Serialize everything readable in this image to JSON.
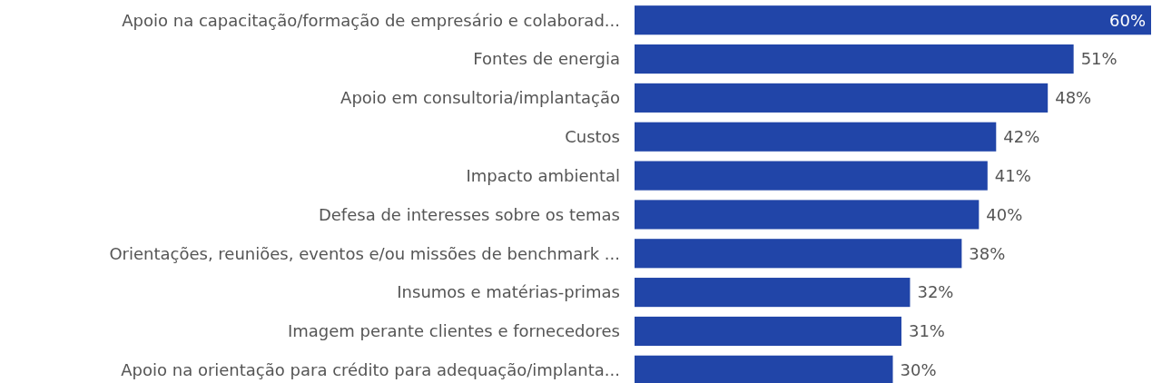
{
  "chart_data": {
    "type": "bar",
    "orientation": "horizontal",
    "categories": [
      "Apoio na capacitação/formação de empresário e colaborad...",
      "Fontes de energia",
      "Apoio em consultoria/implantação",
      "Custos",
      "Impacto ambiental",
      "Defesa de interesses sobre os temas",
      "Orientações, reuniões, eventos e/ou missões de benchmark ...",
      "Insumos e matérias-primas",
      "Imagem perante clientes e fornecedores",
      "Apoio na orientação para crédito para adequação/implanta..."
    ],
    "values": [
      60,
      51,
      48,
      42,
      41,
      40,
      38,
      32,
      31,
      30
    ],
    "value_labels": [
      "60%",
      "51%",
      "48%",
      "42%",
      "41%",
      "40%",
      "38%",
      "32%",
      "31%",
      "30%"
    ],
    "color": "#2145a8"
  }
}
